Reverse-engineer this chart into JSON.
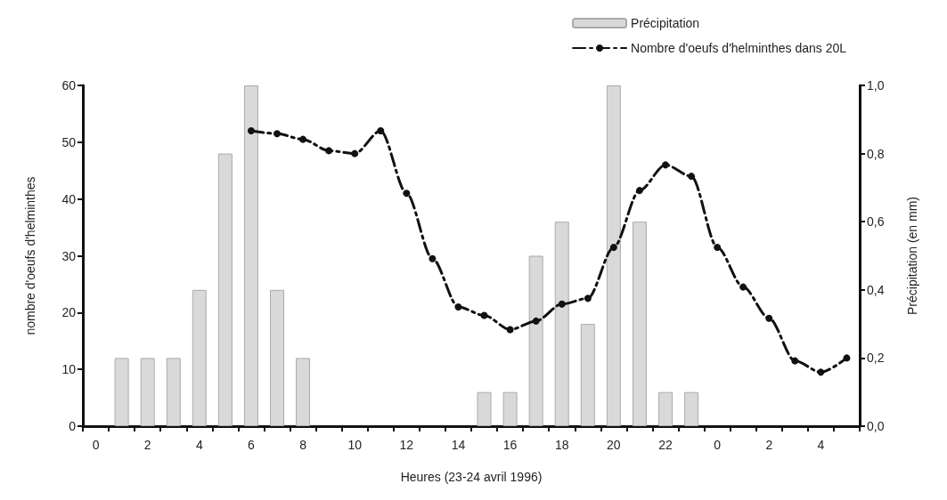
{
  "chart_data": {
    "type": "bar",
    "xlabel": "Heures (23-24 avril 1996)",
    "ylabel": "nombre d'oeufs d'helminthes",
    "y2label": "Précipitation (en mm)",
    "categories": [
      "0",
      null,
      "2",
      null,
      "4",
      null,
      "6",
      null,
      "8",
      null,
      "10",
      null,
      "12",
      null,
      "14",
      null,
      "16",
      null,
      "18",
      null,
      "20",
      null,
      "22",
      null,
      "0",
      null,
      "2",
      null,
      "4",
      null
    ],
    "series": [
      {
        "name": "Précipitation",
        "axis": "y2",
        "color": "#d9d9d9",
        "values": [
          null,
          0.2,
          0.2,
          0.2,
          0.4,
          0.8,
          1.0,
          0.4,
          0.2,
          null,
          null,
          null,
          null,
          null,
          null,
          0.1,
          0.1,
          0.5,
          0.6,
          0.3,
          1.0,
          0.6,
          0.1,
          0.1,
          null,
          null,
          null,
          null,
          null,
          null
        ]
      },
      {
        "name": "Nombre d'oeufs d'helminthes dans 20L",
        "type": "line",
        "color": "#111111",
        "marker": "circle",
        "line_style": "dashed",
        "values": [
          null,
          null,
          null,
          null,
          null,
          null,
          52,
          51.5,
          50.5,
          48.5,
          48,
          52,
          41,
          29.5,
          21,
          19.5,
          17,
          18.5,
          21.5,
          22.5,
          31.5,
          41.5,
          46,
          44,
          31.5,
          24.5,
          19,
          11.5,
          9.5,
          12
        ]
      }
    ],
    "ylim": [
      0,
      60
    ],
    "yticks": [
      0,
      10,
      20,
      30,
      40,
      50,
      60
    ],
    "y2lim": [
      0,
      1
    ],
    "y2ticks": [
      {
        "value": 0,
        "label": "0,0"
      },
      {
        "value": 0.2,
        "label": "0,2"
      },
      {
        "value": 0.4,
        "label": "0,4"
      },
      {
        "value": 0.6,
        "label": "0,6"
      },
      {
        "value": 0.8,
        "label": "0,8"
      },
      {
        "value": 1,
        "label": "1,0"
      }
    ],
    "grid": false,
    "legend": "top right"
  }
}
